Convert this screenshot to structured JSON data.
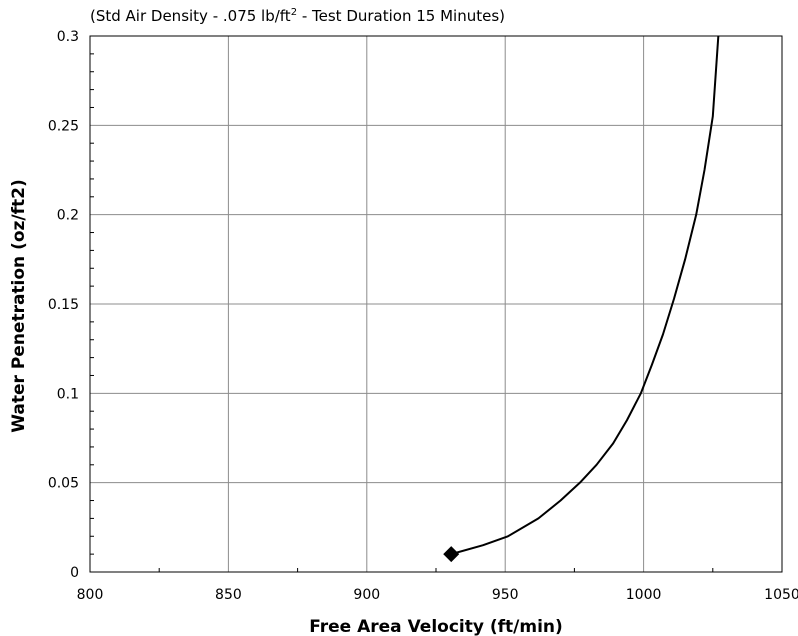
{
  "chart_data": {
    "type": "line",
    "title": "",
    "subtitle": {
      "prefix": "(Std Air Density - .075 lb/ft",
      "superscript": "2",
      "suffix": " -  Test Duration 15 Minutes)"
    },
    "xlabel": "Free Area Velocity (ft/min)",
    "ylabel": "Water Penetration (oz/ft2)",
    "xlim": [
      800,
      1050
    ],
    "ylim": [
      0,
      0.3
    ],
    "x_ticks": [
      800,
      850,
      900,
      950,
      1000,
      1050
    ],
    "x_tick_labels": [
      "800",
      "850",
      "900",
      "950",
      "1000",
      "1050"
    ],
    "y_ticks": [
      0,
      0.05,
      0.1,
      0.15,
      0.2,
      0.25,
      0.3
    ],
    "y_tick_labels": [
      "0",
      "0.05",
      "0.1",
      "0.15",
      "0.2",
      "0.25",
      "0.3"
    ],
    "grid": true,
    "series": [
      {
        "color": "#000000",
        "x": [
          930.5,
          942,
          951,
          962,
          970,
          977,
          983,
          989,
          994,
          999,
          1003,
          1007,
          1011,
          1015,
          1019,
          1022,
          1025,
          1027
        ],
        "y": [
          0.01,
          0.015,
          0.02,
          0.03,
          0.04,
          0.05,
          0.06,
          0.072,
          0.085,
          0.1,
          0.116,
          0.133,
          0.153,
          0.175,
          0.2,
          0.225,
          0.255,
          0.3
        ]
      }
    ],
    "marker": {
      "shape": "diamond",
      "x": 930.5,
      "y": 0.01,
      "color": "#000000"
    }
  }
}
